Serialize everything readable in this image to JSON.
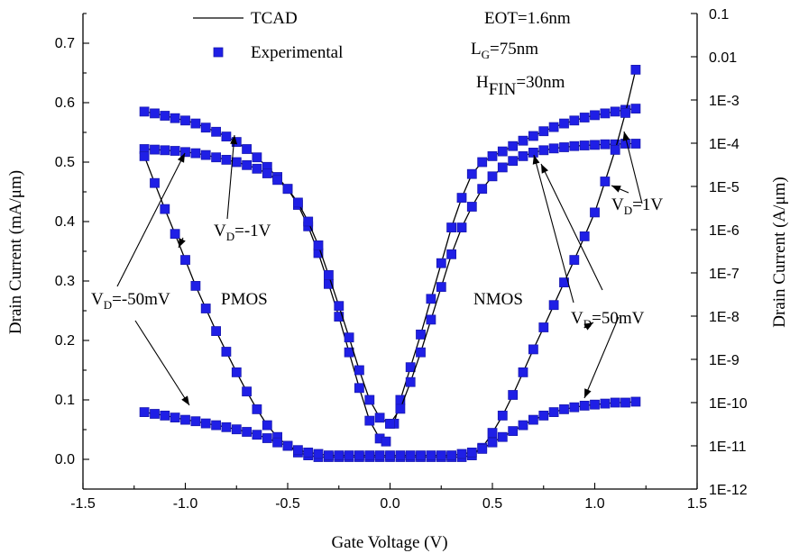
{
  "chart_data": {
    "type": "line",
    "xlabel": "Gate Voltage (V)",
    "ylabel_left": "Drain Current (mA/μm)",
    "ylabel_right": "Drain Current (A/μm)",
    "xlim": [
      -1.5,
      1.5
    ],
    "ylim_left": [
      -0.05,
      0.75
    ],
    "ylim_right_log": [
      1e-12,
      0.1
    ],
    "x_ticks": [
      {
        "v": -1.5,
        "label": "-1.5"
      },
      {
        "v": -1.0,
        "label": "-1.0"
      },
      {
        "v": -0.5,
        "label": "-0.5"
      },
      {
        "v": 0.0,
        "label": "0.0"
      },
      {
        "v": 0.5,
        "label": "0.5"
      },
      {
        "v": 1.0,
        "label": "1.0"
      },
      {
        "v": 1.5,
        "label": "1.5"
      }
    ],
    "y_ticks_left": [
      {
        "v": 0.0,
        "label": "0.0"
      },
      {
        "v": 0.1,
        "label": "0.1"
      },
      {
        "v": 0.2,
        "label": "0.2"
      },
      {
        "v": 0.3,
        "label": "0.3"
      },
      {
        "v": 0.4,
        "label": "0.4"
      },
      {
        "v": 0.5,
        "label": "0.5"
      },
      {
        "v": 0.6,
        "label": "0.6"
      },
      {
        "v": 0.7,
        "label": "0.7"
      }
    ],
    "y_ticks_right": [
      {
        "v": 0.1,
        "label": "0.1"
      },
      {
        "v": 0.01,
        "label": "0.01"
      },
      {
        "v": 0.001,
        "label": "1E-3"
      },
      {
        "v": 0.0001,
        "label": "1E-4"
      },
      {
        "v": 1e-05,
        "label": "1E-5"
      },
      {
        "v": 1e-06,
        "label": "1E-6"
      },
      {
        "v": 1e-07,
        "label": "1E-7"
      },
      {
        "v": 1e-08,
        "label": "1E-8"
      },
      {
        "v": 1e-09,
        "label": "1E-9"
      },
      {
        "v": 1e-10,
        "label": "1E-10"
      },
      {
        "v": 1e-11,
        "label": "1E-11"
      },
      {
        "v": 1e-12,
        "label": "1E-12"
      }
    ],
    "legend": {
      "position": "top-left",
      "entries": [
        {
          "label": "TCAD",
          "style": "line"
        },
        {
          "label": "Experimental",
          "style": "square-marker"
        }
      ]
    },
    "colors": {
      "marker": "#1f1fe6",
      "marker_edge": "#1a1ab0",
      "line": "#000000"
    },
    "params": [
      {
        "main": "EOT=1.6nm",
        "sub": "",
        "rest": ""
      },
      {
        "main": "L",
        "sub": "G",
        "rest": "=75nm"
      },
      {
        "main": "H",
        "sub": "FIN",
        "rest": "=30nm"
      }
    ],
    "labels": {
      "pmos": "PMOS",
      "nmos": "NMOS"
    },
    "annotations": [
      {
        "main": "V",
        "sub": "D",
        "rest": "=-1V"
      },
      {
        "main": "V",
        "sub": "D",
        "rest": "=-50mV"
      },
      {
        "main": "V",
        "sub": "D",
        "rest": "=1V"
      },
      {
        "main": "V",
        "sub": "D",
        "rest": "=50mV"
      }
    ],
    "series": [
      {
        "axis": "left",
        "x": [
          -1.2,
          -1.15,
          -1.1,
          -1.05,
          -1.0,
          -0.95,
          -0.9,
          -0.85,
          -0.8,
          -0.75,
          -0.7,
          -0.65,
          -0.6,
          -0.55,
          -0.5,
          -0.45,
          -0.4,
          -0.35,
          -0.3,
          -0.25,
          -0.2,
          -0.15,
          -0.1,
          -0.05,
          -0.02
        ],
        "y": [
          0.585,
          0.582,
          0.578,
          0.574,
          0.57,
          0.565,
          0.558,
          0.551,
          0.543,
          0.534,
          0.522,
          0.508,
          0.492,
          0.475,
          0.455,
          0.428,
          0.392,
          0.347,
          0.295,
          0.24,
          0.18,
          0.12,
          0.065,
          0.035,
          0.03
        ]
      },
      {
        "axis": "left",
        "x": [
          -1.2,
          -1.15,
          -1.1,
          -1.05,
          -1.0,
          -0.95,
          -0.9,
          -0.85,
          -0.8,
          -0.75,
          -0.7,
          -0.65,
          -0.6,
          -0.55,
          -0.5,
          -0.45,
          -0.4,
          -0.35,
          -0.3,
          -0.25,
          -0.2,
          -0.15,
          -0.1,
          -0.05,
          0.0
        ],
        "y": [
          0.522,
          0.521,
          0.52,
          0.519,
          0.517,
          0.515,
          0.512,
          0.508,
          0.504,
          0.5,
          0.495,
          0.489,
          0.481,
          0.47,
          0.455,
          0.432,
          0.4,
          0.36,
          0.31,
          0.258,
          0.205,
          0.15,
          0.1,
          0.07,
          0.06
        ]
      },
      {
        "axis": "left",
        "x": [
          0.02,
          0.05,
          0.1,
          0.15,
          0.2,
          0.25,
          0.3,
          0.35,
          0.4,
          0.45,
          0.5,
          0.55,
          0.6,
          0.65,
          0.7,
          0.75,
          0.8,
          0.85,
          0.9,
          0.95,
          1.0,
          1.05,
          1.1,
          1.15,
          1.2
        ],
        "y": [
          0.06,
          0.1,
          0.155,
          0.21,
          0.27,
          0.33,
          0.39,
          0.44,
          0.48,
          0.5,
          0.51,
          0.518,
          0.527,
          0.536,
          0.544,
          0.552,
          0.559,
          0.565,
          0.57,
          0.575,
          0.579,
          0.582,
          0.585,
          0.588,
          0.59
        ]
      },
      {
        "axis": "left",
        "x": [
          0.0,
          0.05,
          0.1,
          0.15,
          0.2,
          0.25,
          0.3,
          0.35,
          0.4,
          0.45,
          0.5,
          0.55,
          0.6,
          0.65,
          0.7,
          0.75,
          0.8,
          0.85,
          0.9,
          0.95,
          1.0,
          1.05,
          1.1,
          1.15,
          1.2
        ],
        "y": [
          0.06,
          0.085,
          0.13,
          0.18,
          0.235,
          0.29,
          0.345,
          0.39,
          0.425,
          0.455,
          0.476,
          0.491,
          0.502,
          0.51,
          0.516,
          0.52,
          0.523,
          0.525,
          0.527,
          0.528,
          0.529,
          0.53,
          0.53,
          0.531,
          0.531
        ]
      },
      {
        "axis": "right",
        "x": [
          -1.2,
          -1.15,
          -1.1,
          -1.05,
          -1.0,
          -0.95,
          -0.9,
          -0.85,
          -0.8,
          -0.75,
          -0.7,
          -0.65,
          -0.6,
          -0.55,
          -0.5,
          -0.45,
          -0.4,
          -0.35,
          -0.3,
          -0.25,
          -0.2,
          -0.15,
          -0.1,
          -0.05,
          0.0,
          0.05,
          0.1,
          0.15,
          0.2,
          0.25,
          0.3,
          0.35,
          0.4,
          0.45,
          0.5,
          0.55,
          0.6,
          0.65,
          0.7,
          0.75,
          0.8,
          0.85,
          0.9,
          0.95,
          1.0,
          1.05,
          1.1,
          1.15,
          1.2
        ],
        "y": [
          5e-05,
          1.2e-05,
          3e-06,
          8e-07,
          2e-07,
          5e-08,
          1.5e-08,
          4.5e-09,
          1.5e-09,
          5e-10,
          1.8e-10,
          7e-11,
          3e-11,
          1.6e-11,
          1e-11,
          7e-12,
          6e-12,
          5.5e-12,
          5.5e-12,
          5.5e-12,
          5.5e-12,
          5.5e-12,
          5.5e-12,
          5.5e-12,
          5.5e-12,
          5.5e-12,
          5.5e-12,
          5.5e-12,
          5.5e-12,
          5.5e-12,
          5.5e-12,
          5.5e-12,
          6e-12,
          9e-12,
          2e-11,
          5e-11,
          1.5e-10,
          5e-10,
          1.7e-09,
          5.5e-09,
          1.8e-08,
          6e-08,
          2e-07,
          7e-07,
          2.5e-06,
          1.3e-05,
          7e-05,
          0.0005,
          0.005
        ]
      },
      {
        "axis": "right",
        "x": [
          -1.2,
          -1.15,
          -1.1,
          -1.05,
          -1.0,
          -0.95,
          -0.9,
          -0.85,
          -0.8,
          -0.75,
          -0.7,
          -0.65,
          -0.6,
          -0.55,
          -0.5,
          -0.45,
          -0.4,
          -0.35,
          -0.3,
          -0.25,
          -0.2,
          -0.15,
          -0.1,
          -0.05,
          0.0,
          0.05,
          0.1,
          0.15,
          0.2,
          0.25,
          0.3,
          0.35,
          0.4,
          0.45,
          0.5,
          0.55,
          0.6,
          0.65,
          0.7,
          0.75,
          0.8,
          0.85,
          0.9,
          0.95,
          1.0,
          1.05,
          1.1,
          1.15,
          1.2
        ],
        "y": [
          6e-11,
          5.5e-11,
          5e-11,
          4.5e-11,
          4e-11,
          3.7e-11,
          3.3e-11,
          3e-11,
          2.7e-11,
          2.4e-11,
          2.1e-11,
          1.8e-11,
          1.5e-11,
          1.2e-11,
          1e-11,
          8e-12,
          7e-12,
          6.5e-12,
          6e-12,
          6e-12,
          6e-12,
          6e-12,
          6e-12,
          6e-12,
          6e-12,
          6e-12,
          6e-12,
          6e-12,
          6e-12,
          6e-12,
          6e-12,
          6.5e-12,
          7e-12,
          8.5e-12,
          1.2e-11,
          1.6e-11,
          2.2e-11,
          3e-11,
          4e-11,
          5e-11,
          6e-11,
          7e-11,
          7.8e-11,
          8.5e-11,
          9e-11,
          9.5e-11,
          1e-10,
          1e-10,
          1.05e-10
        ]
      }
    ]
  }
}
